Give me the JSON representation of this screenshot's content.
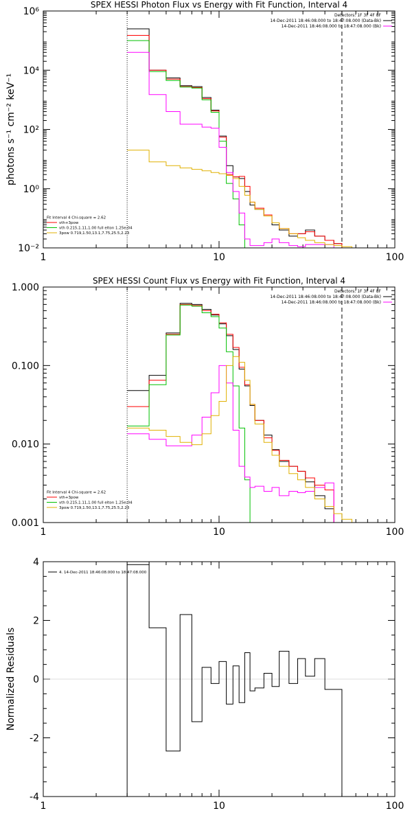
{
  "chart_data": [
    {
      "type": "line",
      "title": "SPEX HESSI Photon Flux vs Energy with Fit Function, Interval 4",
      "xlabel": "",
      "ylabel": "photons s⁻¹ cm⁻² keV⁻¹",
      "xscale": "log",
      "yscale": "log",
      "xlim": [
        1,
        100
      ],
      "ylim": [
        0.01,
        1000000
      ],
      "x_ticks": [
        1,
        10,
        100
      ],
      "x_tick_labels": [
        "1",
        "10",
        "100"
      ],
      "y_ticks": [
        0.01,
        1,
        100,
        10000,
        1000000
      ],
      "y_tick_labels": [
        "10⁻²",
        "10⁰",
        "10²",
        "10⁴",
        "10⁶"
      ],
      "energy_edges": [
        3,
        4,
        5,
        6,
        7,
        8,
        9,
        10,
        11,
        12,
        13,
        14,
        15,
        16,
        18,
        20,
        22,
        25,
        28,
        31,
        35,
        40,
        45,
        50,
        57,
        66,
        80
      ],
      "series": [
        {
          "color": "#000000",
          "values": [
            250000,
            10000,
            5500,
            3000,
            2800,
            1200,
            450,
            60,
            6,
            2.5,
            2.2,
            0.8,
            0.28,
            0.2,
            0.12,
            0.06,
            0.04,
            0.025,
            0.03,
            0.04,
            0.025,
            0.018,
            0.014,
            null,
            null,
            null
          ]
        },
        {
          "color": "#ff0000",
          "values": [
            150000,
            10000,
            5000,
            2800,
            2600,
            1100,
            420,
            55,
            3,
            2.5,
            2.6,
            1.2,
            0.35,
            0.22,
            0.13,
            0.07,
            0.045,
            0.03,
            0.03,
            0.035,
            0.025,
            0.018,
            0.014,
            null,
            null,
            null
          ]
        },
        {
          "color": "#00c000",
          "values": [
            100000,
            9000,
            4500,
            2700,
            2500,
            1000,
            380,
            40,
            1.5,
            0.45,
            0.06,
            0.01,
            null,
            null,
            null,
            null,
            null,
            null,
            null,
            null,
            null,
            null,
            null,
            null,
            null,
            null
          ]
        },
        {
          "color": "#ff00ff",
          "values": [
            40000,
            1500,
            400,
            150,
            150,
            120,
            110,
            25,
            3.5,
            0.8,
            0.15,
            0.02,
            0.012,
            0.012,
            0.015,
            0.02,
            0.015,
            0.012,
            0.011,
            0.013,
            0.013,
            0.013,
            null,
            null,
            null,
            null
          ]
        },
        {
          "color": "#e0b000",
          "values": [
            20,
            8,
            6,
            5,
            4.5,
            4,
            3.5,
            3.2,
            2.8,
            2.2,
            1.2,
            0.6,
            0.35,
            0.2,
            0.12,
            0.07,
            0.045,
            0.03,
            0.022,
            0.018,
            0.015,
            0.013,
            0.012,
            0.011,
            0.01,
            null
          ]
        }
      ],
      "fit_start_energy": 3,
      "fit_end_energy": 50,
      "legend_right": [
        {
          "text": "Detectors: 1F 3F 4F 8F",
          "color": ""
        },
        {
          "text": "14-Dec-2011 18:46:08.000 to 18:47:08.000 (Data-Bk)",
          "color": "#000000"
        },
        {
          "text": "14-Dec-2011 18:46:08.000 to 18:47:08.000 (Bk)",
          "color": "#ff00ff"
        }
      ],
      "legend_left": [
        {
          "text": "Fit Interval 4   Chi-square = 2.62",
          "color": ""
        },
        {
          "text": "vth+3pow",
          "color": "#ff0000"
        },
        {
          "text": "vth 0.215,1.11,1.00  full elton 1.25e-04",
          "color": "#00c000"
        },
        {
          "text": "3pow 0.719,1.50,13.1,7.75,25.5,2.23",
          "color": "#e0b000"
        }
      ]
    },
    {
      "type": "line",
      "title": "SPEX HESSI Count Flux vs Energy with Fit Function, Interval 4",
      "xlabel": "",
      "ylabel": "",
      "xscale": "log",
      "yscale": "log",
      "xlim": [
        1,
        100
      ],
      "ylim": [
        0.001,
        1.0
      ],
      "x_ticks": [
        1,
        10,
        100
      ],
      "x_tick_labels": [
        "1",
        "10",
        "100"
      ],
      "y_ticks": [
        0.001,
        0.01,
        0.1,
        1.0
      ],
      "y_tick_labels": [
        "0.001",
        "0.010",
        "0.100",
        "1.000"
      ],
      "energy_edges": [
        3,
        4,
        5,
        6,
        7,
        8,
        9,
        10,
        11,
        12,
        13,
        14,
        15,
        16,
        18,
        20,
        22,
        25,
        28,
        31,
        35,
        40,
        45,
        50,
        57,
        66,
        80
      ],
      "series": [
        {
          "color": "#000000",
          "values": [
            0.048,
            0.075,
            0.26,
            0.62,
            0.6,
            0.52,
            0.44,
            0.34,
            0.24,
            0.16,
            0.09,
            0.055,
            0.031,
            0.02,
            0.013,
            0.0085,
            0.006,
            0.0052,
            0.0045,
            0.0033,
            0.0022,
            0.0015,
            null,
            null,
            null,
            null
          ]
        },
        {
          "color": "#ff0000",
          "values": [
            0.03,
            0.065,
            0.25,
            0.6,
            0.58,
            0.5,
            0.45,
            0.35,
            0.25,
            0.17,
            0.095,
            0.057,
            0.032,
            0.02,
            0.012,
            0.0083,
            0.0062,
            0.0052,
            0.0045,
            0.0037,
            0.003,
            0.0026,
            null,
            null,
            null,
            null
          ]
        },
        {
          "color": "#00c000",
          "values": [
            0.017,
            0.057,
            0.245,
            0.59,
            0.57,
            0.47,
            0.42,
            0.3,
            0.15,
            0.055,
            0.016,
            0.0035,
            0.0009,
            null,
            null,
            null,
            null,
            null,
            null,
            null,
            null,
            null,
            null,
            null,
            null,
            null
          ]
        },
        {
          "color": "#ff00ff",
          "values": [
            0.0135,
            0.0115,
            0.0095,
            0.0095,
            0.013,
            0.022,
            0.045,
            0.1,
            0.06,
            0.015,
            0.0052,
            0.0038,
            0.0028,
            0.0029,
            0.0025,
            0.0028,
            0.0022,
            0.0025,
            0.0024,
            0.0025,
            0.0028,
            0.0032,
            null,
            null,
            null,
            null
          ]
        },
        {
          "color": "#e0b000",
          "values": [
            0.016,
            0.015,
            0.0125,
            0.0105,
            0.0098,
            0.0135,
            0.023,
            0.035,
            0.1,
            0.13,
            0.11,
            0.065,
            0.032,
            0.018,
            0.0105,
            0.0072,
            0.0052,
            0.0042,
            0.0035,
            0.0028,
            0.002,
            0.0016,
            0.0013,
            0.0011,
            0.0009,
            null
          ]
        }
      ],
      "fit_start_energy": 3,
      "fit_end_energy": 50,
      "legend_right": [
        {
          "text": "Detectors: 1F 3F 4F 8F",
          "color": ""
        },
        {
          "text": "14-Dec-2011 18:46:08.000 to 18:47:08.000 (Data-Bk)",
          "color": "#000000"
        },
        {
          "text": "14-Dec-2011 18:46:08.000 to 18:47:08.000 (Bk)",
          "color": "#ff00ff"
        }
      ],
      "legend_left": [
        {
          "text": "Fit Interval 4   Chi-square = 2.62",
          "color": ""
        },
        {
          "text": "vth+3pow",
          "color": "#ff0000"
        },
        {
          "text": "vth 0.215,1.11,1.00  full elton 1.25e-04",
          "color": "#00c000"
        },
        {
          "text": "3pow 0.719,1.50,13.1,7.75,25.5,2.23",
          "color": "#e0b000"
        }
      ]
    },
    {
      "type": "line",
      "title": "",
      "xlabel": "",
      "ylabel": "Normalized Residuals",
      "xscale": "log",
      "yscale": "linear",
      "xlim": [
        1,
        100
      ],
      "ylim": [
        -4,
        4
      ],
      "x_ticks": [
        1,
        10,
        100
      ],
      "x_tick_labels": [
        "1",
        "10",
        "100"
      ],
      "y_ticks": [
        -4,
        -2,
        0,
        2,
        4
      ],
      "y_tick_labels": [
        "-4",
        "-2",
        "0",
        "2",
        "4"
      ],
      "energy_edges": [
        3,
        4,
        5,
        6,
        7,
        8,
        9,
        10,
        11,
        12,
        13,
        14,
        15,
        16,
        18,
        20,
        22,
        25,
        28,
        31,
        35,
        40,
        45,
        50
      ],
      "series": [
        {
          "color": "#000000",
          "values": [
            3.9,
            1.75,
            -2.45,
            2.2,
            -1.45,
            0.4,
            -0.15,
            0.6,
            -0.85,
            0.45,
            -0.8,
            0.9,
            -0.4,
            -0.3,
            0.2,
            -0.25,
            0.95,
            -0.15,
            0.7,
            0.1,
            0.7,
            -0.35,
            -0.35
          ]
        }
      ],
      "legend_text": "4. 14-Dec-2011 18:46:08.000 to 18:47:08.000"
    }
  ]
}
